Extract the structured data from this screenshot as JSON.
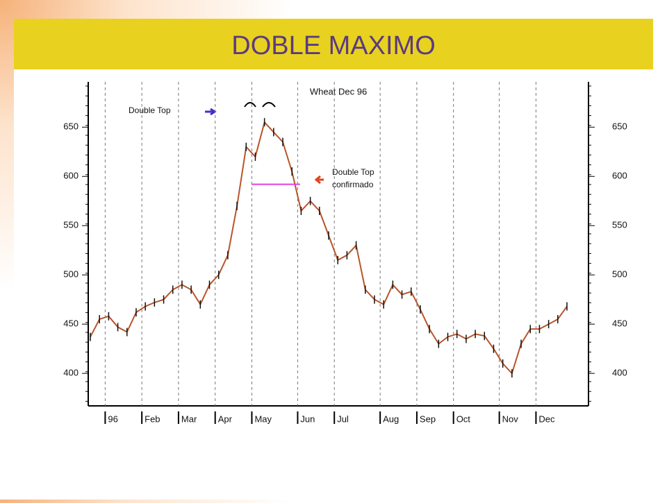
{
  "header": {
    "title": "DOBLE MAXIMO"
  },
  "chart_data": {
    "type": "line",
    "title": "Wheat Dec 96",
    "categories": [
      null,
      null,
      "96",
      null,
      null,
      null,
      "Feb",
      null,
      null,
      null,
      "Mar",
      null,
      null,
      null,
      "Apr",
      null,
      null,
      null,
      "May",
      null,
      null,
      null,
      null,
      "Jun",
      null,
      null,
      null,
      "Jul",
      null,
      null,
      null,
      null,
      "Aug",
      null,
      null,
      null,
      "Sep",
      null,
      null,
      null,
      "Oct",
      null,
      null,
      null,
      null,
      "Nov",
      null,
      null,
      null,
      "Dec",
      null,
      null,
      null
    ],
    "series": [
      {
        "color": "#b8542a",
        "values": [
          437,
          455,
          458,
          447,
          442,
          462,
          468,
          472,
          475,
          485,
          490,
          485,
          470,
          490,
          500,
          520,
          570,
          630,
          620,
          655,
          645,
          635,
          605,
          565,
          575,
          565,
          540,
          515,
          520,
          530,
          485,
          475,
          470,
          490,
          480,
          483,
          465,
          445,
          430,
          437,
          440,
          435,
          440,
          438,
          425,
          410,
          400,
          430,
          445,
          445,
          450,
          455,
          468
        ]
      }
    ],
    "ylim": [
      367,
      696
    ],
    "yticks": [
      400,
      450,
      500,
      550,
      600,
      650
    ],
    "grid": true,
    "neckline": 592,
    "annotations": [
      "Double Top",
      "Double Top confirmado"
    ]
  }
}
